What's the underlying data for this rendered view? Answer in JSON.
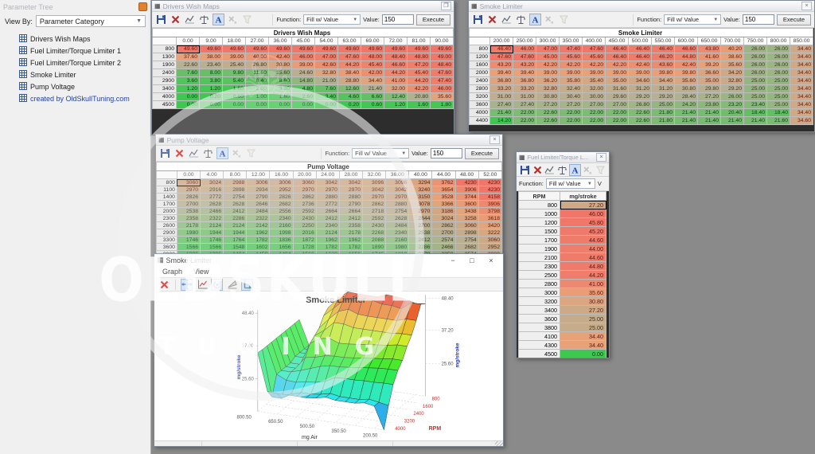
{
  "parameter_tree": {
    "title": "Parameter Tree",
    "view_by_label": "View By:",
    "view_by_value": "Parameter Category",
    "items": [
      {
        "label": "Drivers Wish Maps",
        "link": false
      },
      {
        "label": "Fuel Limiter/Torque Limiter 1",
        "link": false
      },
      {
        "label": "Fuel Limiter/Torque Limiter 2",
        "link": false
      },
      {
        "label": "Smoke Limiter",
        "link": false
      },
      {
        "label": "Pump Voltage",
        "link": false
      },
      {
        "label": "created by OldSkullTuning.com",
        "link": true
      }
    ]
  },
  "function_bar": {
    "function_label": "Function:",
    "function_value": "Fill w/ Value",
    "value_label": "Value:",
    "value": "150",
    "execute_label": "Execute"
  },
  "windows": {
    "drivers": {
      "title": "Drivers Wish Maps",
      "caption": "Drivers Wish Maps",
      "table": {
        "format": "2dp",
        "col_headers": [
          "0.00",
          "9.00",
          "18.00",
          "27.00",
          "36.00",
          "45.00",
          "54.00",
          "63.00",
          "69.00",
          "72.00",
          "81.00",
          "90.00"
        ],
        "rows": [
          {
            "label": "800",
            "values": [
              49.6,
              49.6,
              49.6,
              49.6,
              49.6,
              49.6,
              49.6,
              49.6,
              49.6,
              49.6,
              49.6,
              49.6
            ]
          },
          {
            "label": "1300",
            "values": [
              37.6,
              38.0,
              39.0,
              40.0,
              42.4,
              46.0,
              47.0,
              47.6,
              48.0,
              48.4,
              48.8,
              49.0
            ]
          },
          {
            "label": "1900",
            "values": [
              22.6,
              23.4,
              25.4,
              26.8,
              30.8,
              39.0,
              42.6,
              44.2,
              45.4,
              46.6,
              47.2,
              48.4
            ]
          },
          {
            "label": "2400",
            "values": [
              7.6,
              8.0,
              9.8,
              11.6,
              15.6,
              24.6,
              32.8,
              38.4,
              42.0,
              44.2,
              45.4,
              47.6
            ]
          },
          {
            "label": "2900",
            "values": [
              3.6,
              3.8,
              5.4,
              6.4,
              8.6,
              14.8,
              21.0,
              28.8,
              34.4,
              41.0,
              44.2,
              47.4
            ]
          },
          {
            "label": "3400",
            "values": [
              1.2,
              1.2,
              1.6,
              2.0,
              3.2,
              4.8,
              7.6,
              12.6,
              21.4,
              32.0,
              42.2,
              46.0
            ]
          },
          {
            "label": "4000",
            "values": [
              0.0,
              0.2,
              0.6,
              1.0,
              1.6,
              2.6,
              3.4,
              4.6,
              6.6,
              12.4,
              20.8,
              35.6
            ]
          },
          {
            "label": "4500",
            "values": [
              0.0,
              0.0,
              0.0,
              0.0,
              0.0,
              0.0,
              0.0,
              0.2,
              0.6,
              1.2,
              1.6,
              1.8
            ]
          }
        ]
      }
    },
    "smoke_table": {
      "title": "Smoke Limiter",
      "caption": "Smoke Limiter",
      "table": {
        "format": "2dp",
        "col_headers": [
          "200.00",
          "250.00",
          "300.00",
          "350.00",
          "400.00",
          "450.00",
          "500.00",
          "550.00",
          "600.00",
          "650.00",
          "700.00",
          "750.00",
          "800.00",
          "850.00"
        ],
        "rows": [
          {
            "label": "800",
            "values": [
              46.4,
              46.0,
              47.0,
              47.4,
              47.6,
              46.4,
              46.4,
              46.4,
              46.6,
              43.8,
              40.2,
              26.0,
              26.0,
              34.4
            ]
          },
          {
            "label": "1200",
            "values": [
              47.6,
              47.6,
              45.0,
              45.6,
              45.6,
              46.4,
              46.4,
              46.2,
              44.8,
              41.6,
              38.6,
              26.0,
              26.0,
              34.4
            ]
          },
          {
            "label": "1600",
            "values": [
              43.2,
              43.2,
              42.2,
              42.2,
              42.2,
              42.2,
              42.4,
              43.6,
              42.4,
              39.2,
              35.6,
              26.0,
              26.0,
              34.4
            ]
          },
          {
            "label": "2000",
            "values": [
              39.4,
              39.4,
              39.0,
              39.0,
              39.0,
              39.0,
              39.0,
              39.8,
              39.8,
              36.6,
              34.2,
              26.0,
              26.0,
              34.4
            ]
          },
          {
            "label": "2400",
            "values": [
              36.8,
              36.8,
              36.2,
              35.8,
              35.4,
              35.0,
              34.6,
              34.4,
              35.6,
              35.0,
              32.8,
              25.0,
              25.0,
              34.4
            ]
          },
          {
            "label": "2800",
            "values": [
              33.2,
              33.2,
              32.8,
              32.4,
              32.0,
              31.6,
              31.2,
              31.2,
              30.8,
              29.8,
              29.2,
              25.0,
              25.0,
              34.4
            ]
          },
          {
            "label": "3200",
            "values": [
              31.0,
              31.0,
              30.8,
              30.4,
              30.0,
              29.6,
              29.2,
              29.2,
              28.4,
              27.2,
              26.0,
              25.0,
              25.0,
              34.4
            ]
          },
          {
            "label": "3600",
            "values": [
              27.4,
              27.4,
              27.2,
              27.2,
              27.0,
              27.0,
              26.8,
              25.0,
              24.2,
              23.8,
              23.2,
              23.4,
              25.0,
              34.4
            ]
          },
          {
            "label": "4000",
            "values": [
              21.4,
              22.0,
              22.6,
              22.0,
              22.0,
              22.0,
              22.6,
              21.8,
              21.4,
              21.4,
              20.4,
              18.4,
              18.4,
              34.4
            ]
          },
          {
            "label": "4400",
            "values": [
              14.2,
              22.0,
              22.6,
              22.0,
              22.0,
              22.0,
              22.6,
              21.8,
              21.4,
              21.4,
              21.4,
              21.4,
              21.6,
              34.6
            ]
          }
        ]
      }
    },
    "pump": {
      "title": "Pump Voltage",
      "caption": "Pump Voltage",
      "table": {
        "format": "int",
        "col_headers": [
          "0.00",
          "4.00",
          "8.00",
          "12.00",
          "16.00",
          "20.00",
          "24.00",
          "28.00",
          "32.00",
          "36.00",
          "40.00",
          "44.00",
          "48.00",
          "52.00"
        ],
        "rows": [
          {
            "label": "800",
            "values": [
              3060,
              3024,
              2988,
              3006,
              3006,
              3060,
              3042,
              3042,
              3096,
              3096,
              3294,
              3762,
              4230,
              4230
            ]
          },
          {
            "label": "1100",
            "values": [
              2970,
              2916,
              2898,
              2934,
              2952,
              2970,
              2970,
              2970,
              3042,
              3042,
              3240,
              3654,
              3906,
              4230
            ]
          },
          {
            "label": "1400",
            "values": [
              2826,
              2772,
              2754,
              2790,
              2826,
              2862,
              2880,
              2880,
              2970,
              2970,
              3150,
              3528,
              3744,
              4158
            ]
          },
          {
            "label": "1700",
            "values": [
              2700,
              2628,
              2628,
              2646,
              2682,
              2736,
              2772,
              2790,
              2862,
              2880,
              3078,
              3366,
              3600,
              3906
            ]
          },
          {
            "label": "2000",
            "values": [
              2538,
              2466,
              2412,
              2484,
              2556,
              2592,
              2664,
              2664,
              2718,
              2754,
              2970,
              3186,
              3438,
              3798
            ]
          },
          {
            "label": "2300",
            "values": [
              2358,
              2322,
              2286,
              2322,
              2340,
              2430,
              2412,
              2412,
              2592,
              2628,
              2844,
              3024,
              3258,
              3618
            ]
          },
          {
            "label": "2600",
            "values": [
              2178,
              2124,
              2124,
              2142,
              2160,
              2250,
              2340,
              2358,
              2430,
              2484,
              2700,
              2862,
              3060,
              3420
            ]
          },
          {
            "label": "2900",
            "values": [
              1980,
              1944,
              1944,
              1962,
              1998,
              2016,
              2124,
              2178,
              2268,
              2340,
              2538,
              2700,
              2898,
              3222
            ]
          },
          {
            "label": "3300",
            "values": [
              1746,
              1746,
              1764,
              1782,
              1836,
              1872,
              1962,
              1962,
              2088,
              2160,
              2412,
              2574,
              2754,
              3060
            ]
          },
          {
            "label": "3600",
            "values": [
              1566,
              1566,
              1548,
              1602,
              1656,
              1728,
              1782,
              1782,
              1890,
              1980,
              2286,
              2466,
              2682,
              2952
            ]
          },
          {
            "label": "3900",
            "values": [
              1386,
              1386,
              1404,
              1458,
              1494,
              1566,
              1620,
              1656,
              1746,
              1818,
              2178,
              2358,
              2574,
              2880
            ]
          }
        ]
      }
    },
    "fuel": {
      "title": "Fuel Limiter/Torque L...",
      "value_cut": "V",
      "col_headers": [
        "RPM",
        "mg/stroke"
      ],
      "rows": [
        {
          "label": "800",
          "value": 27.2
        },
        {
          "label": "1000",
          "value": 46.0
        },
        {
          "label": "1200",
          "value": 45.8
        },
        {
          "label": "1500",
          "value": 45.2
        },
        {
          "label": "1700",
          "value": 44.6
        },
        {
          "label": "1900",
          "value": 44.0
        },
        {
          "label": "2100",
          "value": 44.6
        },
        {
          "label": "2300",
          "value": 44.8
        },
        {
          "label": "2500",
          "value": 44.2
        },
        {
          "label": "2800",
          "value": 41.0
        },
        {
          "label": "3000",
          "value": 35.6
        },
        {
          "label": "3200",
          "value": 30.8
        },
        {
          "label": "3400",
          "value": 27.2
        },
        {
          "label": "3600",
          "value": 25.0
        },
        {
          "label": "3800",
          "value": 25.0
        },
        {
          "label": "4100",
          "value": 34.4
        },
        {
          "label": "4300",
          "value": 34.4
        },
        {
          "label": "4500",
          "value": 0.0
        }
      ]
    },
    "graph": {
      "title": "Smoke Limiter",
      "menu_graph": "Graph",
      "menu_view": "View",
      "controls": {
        "minimize": "−",
        "maximize": "□",
        "close": "×"
      },
      "close_glyph": "×"
    }
  },
  "chart_data": {
    "type": "surface",
    "title": "Smoke Limiter",
    "x_axis": {
      "label": "RPM",
      "ticks": [
        800,
        1600,
        2400,
        3200,
        4000
      ],
      "color": "#c03028"
    },
    "y_axis": {
      "label": "mg Air",
      "ticks": [
        "800.50",
        "650.50",
        "500.50",
        "350.50",
        "200.50"
      ]
    },
    "z_axis": {
      "label": "mg/stroke",
      "left_ticks": [
        "48.40",
        "37.00",
        "25.60"
      ],
      "right_ticks": [
        "48.40",
        "37.20",
        "25.60"
      ],
      "color": "#2233bb"
    },
    "rpm": [
      800,
      1200,
      1600,
      2000,
      2400,
      2800,
      3200,
      3600,
      4000,
      4400
    ],
    "mg_air": [
      200,
      250,
      300,
      350,
      400,
      450,
      500,
      550,
      600,
      650,
      700,
      750,
      800,
      850
    ],
    "values": [
      [
        46.4,
        46.0,
        47.0,
        47.4,
        47.6,
        46.4,
        46.4,
        46.4,
        46.6,
        43.8,
        40.2,
        26.0,
        26.0,
        34.4
      ],
      [
        47.6,
        47.6,
        45.0,
        45.6,
        45.6,
        46.4,
        46.4,
        46.2,
        44.8,
        41.6,
        38.6,
        26.0,
        26.0,
        34.4
      ],
      [
        43.2,
        43.2,
        42.2,
        42.2,
        42.2,
        42.2,
        42.4,
        43.6,
        42.4,
        39.2,
        35.6,
        26.0,
        26.0,
        34.4
      ],
      [
        39.4,
        39.4,
        39.0,
        39.0,
        39.0,
        39.0,
        39.0,
        39.8,
        39.8,
        36.6,
        34.2,
        26.0,
        26.0,
        34.4
      ],
      [
        36.8,
        36.8,
        36.2,
        35.8,
        35.4,
        35.0,
        34.6,
        34.4,
        35.6,
        35.0,
        32.8,
        25.0,
        25.0,
        34.4
      ],
      [
        33.2,
        33.2,
        32.8,
        32.4,
        32.0,
        31.6,
        31.2,
        31.2,
        30.8,
        29.8,
        29.2,
        25.0,
        25.0,
        34.4
      ],
      [
        31.0,
        31.0,
        30.8,
        30.4,
        30.0,
        29.6,
        29.2,
        29.2,
        28.4,
        27.2,
        26.0,
        25.0,
        25.0,
        34.4
      ],
      [
        27.4,
        27.4,
        27.2,
        27.2,
        27.0,
        27.0,
        26.8,
        25.0,
        24.2,
        23.8,
        23.2,
        23.4,
        25.0,
        34.4
      ],
      [
        21.4,
        22.0,
        22.6,
        22.0,
        22.0,
        22.0,
        22.6,
        21.8,
        21.4,
        21.4,
        20.4,
        18.4,
        18.4,
        34.4
      ],
      [
        14.2,
        22.0,
        22.6,
        22.0,
        22.0,
        22.0,
        22.6,
        21.8,
        21.4,
        21.4,
        21.4,
        21.4,
        21.6,
        34.6
      ]
    ]
  },
  "watermark": {
    "line1": "OLDSKULL",
    "line2": "TUNING",
    "skull": "☠"
  }
}
